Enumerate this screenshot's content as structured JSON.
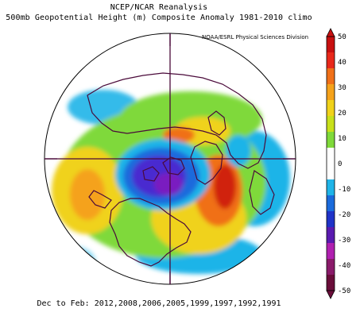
{
  "title_line1": "NCEP/NCAR Reanalysis",
  "title_line2": "500mb Geopotential Height (m) Composite Anomaly 1981-2010 climo",
  "credit": "NOAA/ESRL Physical Sciences Division",
  "footer": "Dec to Feb: 2012,2008,2006,2005,1999,1997,1992,1991",
  "colorbar": {
    "ticks": [
      "50",
      "40",
      "30",
      "20",
      "10",
      "0",
      "-10",
      "-20",
      "-30",
      "-40",
      "-50"
    ],
    "colors": [
      "#6a0d3a",
      "#8a1a6a",
      "#b020b0",
      "#5a1ab0",
      "#1f33c8",
      "#1a6bdc",
      "#1fb4e8",
      "#ffffff",
      "#ffffff",
      "#7fd93a",
      "#c8e01a",
      "#f0d21a",
      "#f5a21a",
      "#f07018",
      "#e8281a",
      "#c81010"
    ]
  },
  "map": {
    "projection": "north-polar-stereographic",
    "colors": {
      "ocean_land": "#ffffff",
      "coast": "#4a0a3a",
      "pos_light": "#7fd93a",
      "pos_mid": "#f0d21a",
      "pos_strong": "#f07018",
      "pos_max": "#d02010",
      "neg_light": "#1fb4e8",
      "neg_mid": "#1a6bdc",
      "neg_strong": "#4a2ad0",
      "neg_max": "#7a1ac0"
    }
  }
}
